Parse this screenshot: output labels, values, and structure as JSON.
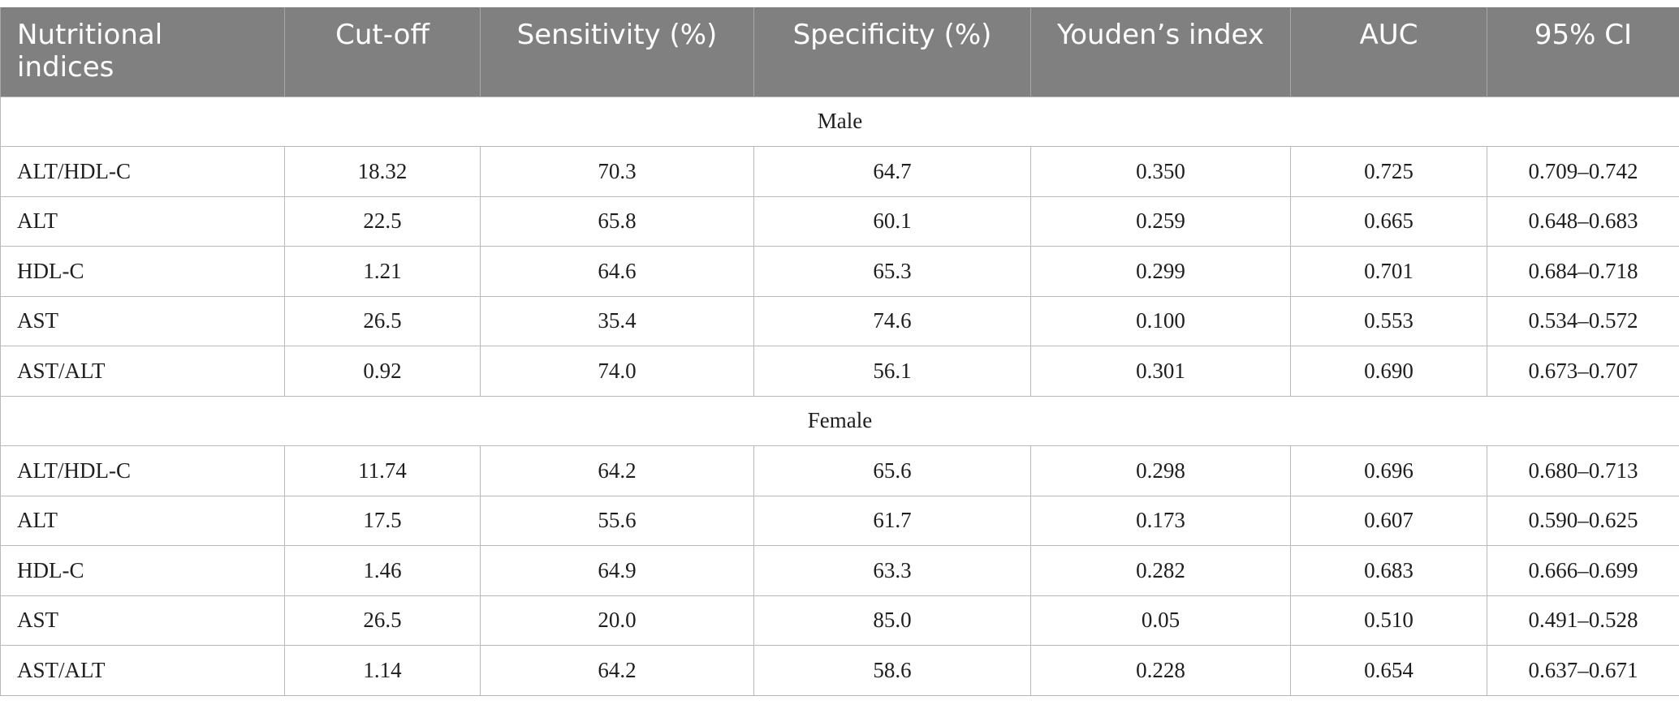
{
  "headers": [
    "Nutritional indices",
    "Cut-off",
    "Sensitivity (%)",
    "Specificity (%)",
    "Youden’s index",
    "AUC",
    "95% CI"
  ],
  "groups": [
    {
      "label": "Male",
      "rows": [
        [
          "ALT/HDL-C",
          "18.32",
          "70.3",
          "64.7",
          "0.350",
          "0.725",
          "0.709–0.742"
        ],
        [
          "ALT",
          "22.5",
          "65.8",
          "60.1",
          "0.259",
          "0.665",
          "0.648–0.683"
        ],
        [
          "HDL-C",
          "1.21",
          "64.6",
          "65.3",
          "0.299",
          "0.701",
          "0.684–0.718"
        ],
        [
          "AST",
          "26.5",
          "35.4",
          "74.6",
          "0.100",
          "0.553",
          "0.534–0.572"
        ],
        [
          "AST/ALT",
          "0.92",
          "74.0",
          "56.1",
          "0.301",
          "0.690",
          "0.673–0.707"
        ]
      ]
    },
    {
      "label": "Female",
      "rows": [
        [
          "ALT/HDL-C",
          "11.74",
          "64.2",
          "65.6",
          "0.298",
          "0.696",
          "0.680–0.713"
        ],
        [
          "ALT",
          "17.5",
          "55.6",
          "61.7",
          "0.173",
          "0.607",
          "0.590–0.625"
        ],
        [
          "HDL-C",
          "1.46",
          "64.9",
          "63.3",
          "0.282",
          "0.683",
          "0.666–0.699"
        ],
        [
          "AST",
          "26.5",
          "20.0",
          "85.0",
          "0.05",
          "0.510",
          "0.491–0.528"
        ],
        [
          "AST/ALT",
          "1.14",
          "64.2",
          "58.6",
          "0.228",
          "0.654",
          "0.637–0.671"
        ]
      ]
    }
  ]
}
